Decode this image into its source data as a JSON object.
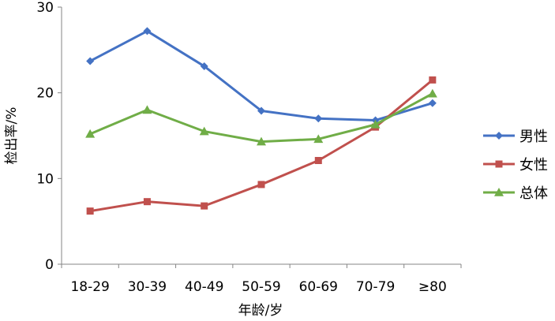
{
  "chart_data": {
    "type": "line",
    "title": "",
    "xlabel": "年龄/岁",
    "ylabel": "检出率/%",
    "categories": [
      "18-29",
      "30-39",
      "40-49",
      "50-59",
      "60-69",
      "70-79",
      "≥80"
    ],
    "ylim": [
      0,
      30
    ],
    "yticks": [
      "0",
      "10",
      "20",
      "30"
    ],
    "grid": false,
    "legend_position": "right",
    "series": [
      {
        "name": "男性",
        "color": "#4472C4",
        "marker": "diamond",
        "values": [
          23.7,
          27.2,
          23.1,
          17.9,
          17.0,
          16.8,
          18.8
        ]
      },
      {
        "name": "女性",
        "color": "#C0504D",
        "marker": "square",
        "values": [
          6.2,
          7.3,
          6.8,
          9.3,
          12.1,
          16.0,
          21.5
        ]
      },
      {
        "name": "总体",
        "color": "#70AD47",
        "marker": "triangle",
        "values": [
          15.2,
          18.0,
          15.5,
          14.3,
          14.6,
          16.3,
          19.9
        ]
      }
    ]
  }
}
